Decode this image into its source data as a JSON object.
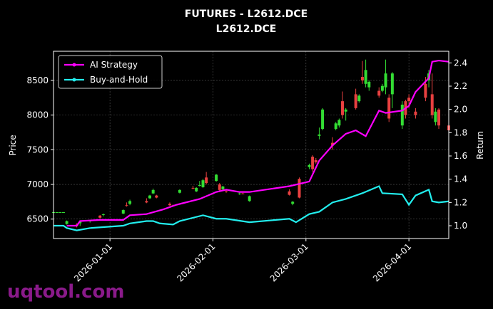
{
  "chart_data": {
    "type": "candlestick",
    "title": "FUTURES - L2612.DCE",
    "subtitle": "L2612.DCE",
    "y_label": "Price",
    "y2_label": "Return",
    "watermark": "uqtool.com",
    "grid": true,
    "legend": "upper left",
    "up_color": "#33dd33",
    "down_color": "#e84040",
    "xlim": [
      "2025-12-15",
      "2026-04-13"
    ],
    "xticks": [
      "2026-01-01",
      "2026-02-01",
      "2026-03-01",
      "2026-04-01"
    ],
    "ylim": [
      6220,
      8920
    ],
    "yticks": [
      6500,
      7000,
      7500,
      8000,
      8500
    ],
    "y2lim": [
      0.89,
      2.5
    ],
    "y2ticks": [
      {
        "value": 1.0,
        "label": "1.0"
      },
      1.2,
      1.4,
      1.6,
      1.8,
      {
        "value": 2.0,
        "label": "2.0"
      },
      2.2,
      2.4
    ],
    "x": [
      "2025-12-15",
      "2025-12-16",
      "2025-12-17",
      "2025-12-18",
      "2025-12-19",
      "2025-12-22",
      "2025-12-23",
      "2025-12-26",
      "2025-12-29",
      "2025-12-30",
      "2026-01-05",
      "2026-01-06",
      "2026-01-07",
      "2026-01-12",
      "2026-01-13",
      "2026-01-14",
      "2026-01-15",
      "2026-01-19",
      "2026-01-20",
      "2026-01-22",
      "2026-01-26",
      "2026-01-27",
      "2026-01-28",
      "2026-01-29",
      "2026-01-30",
      "2026-02-02",
      "2026-02-03",
      "2026-02-04",
      "2026-02-05",
      "2026-02-09",
      "2026-02-10",
      "2026-02-12",
      "2026-02-24",
      "2026-02-25",
      "2026-02-27",
      "2026-03-02",
      "2026-03-03",
      "2026-03-04",
      "2026-03-05",
      "2026-03-06",
      "2026-03-09",
      "2026-03-10",
      "2026-03-11",
      "2026-03-12",
      "2026-03-13",
      "2026-03-16",
      "2026-03-17",
      "2026-03-18",
      "2026-03-19",
      "2026-03-20",
      "2026-03-23",
      "2026-03-24",
      "2026-03-25",
      "2026-03-26",
      "2026-03-27",
      "2026-03-30",
      "2026-03-31",
      "2026-04-01",
      "2026-04-03",
      "2026-04-06",
      "2026-04-07",
      "2026-04-08",
      "2026-04-09",
      "2026-04-10",
      "2026-04-13"
    ],
    "open": [
      6600,
      6600,
      6600,
      6600,
      6430,
      6420,
      6440,
      6470,
      6550,
      6560,
      6580,
      6700,
      6720,
      6760,
      6800,
      6870,
      6840,
      6720,
      6700,
      6880,
      6950,
      6900,
      6980,
      6960,
      7100,
      7050,
      7000,
      6930,
      6900,
      6860,
      6870,
      6760,
      6900,
      6720,
      7080,
      7250,
      7400,
      7350,
      7700,
      7800,
      7600,
      7800,
      7850,
      8200,
      8050,
      8300,
      8200,
      8550,
      8450,
      8400,
      8350,
      8350,
      8400,
      8250,
      8300,
      7850,
      8200,
      8250,
      8050,
      8450,
      8500,
      8300,
      7900,
      8080,
      7850
    ],
    "high": [
      6600,
      6600,
      6600,
      6600,
      6480,
      6440,
      6470,
      6490,
      6560,
      6580,
      6640,
      6740,
      6780,
      6800,
      6850,
      6940,
      6850,
      6740,
      6710,
      6930,
      6980,
      6960,
      7050,
      7080,
      7180,
      7150,
      7020,
      6980,
      6920,
      6880,
      6880,
      6840,
      6930,
      6760,
      7100,
      7300,
      7420,
      7380,
      7820,
      8100,
      7680,
      7900,
      7950,
      8340,
      8100,
      8380,
      8300,
      8780,
      8800,
      8500,
      8400,
      8450,
      8800,
      8300,
      8620,
      8200,
      8220,
      8300,
      8100,
      8550,
      8650,
      8600,
      8100,
      8100,
      7900
    ],
    "low": [
      6600,
      6600,
      6600,
      6600,
      6420,
      6380,
      6400,
      6450,
      6510,
      6540,
      6570,
      6680,
      6700,
      6730,
      6790,
      6860,
      6800,
      6690,
      6680,
      6870,
      6930,
      6890,
      6970,
      6950,
      7000,
      7040,
      6900,
      6920,
      6880,
      6850,
      6860,
      6750,
      6840,
      6700,
      6800,
      7220,
      7180,
      7300,
      7650,
      7780,
      7500,
      7780,
      7820,
      7950,
      7920,
      8080,
      8180,
      8450,
      8400,
      8350,
      8250,
      8330,
      8300,
      7900,
      8100,
      7800,
      7950,
      8100,
      7950,
      8200,
      8400,
      7950,
      7850,
      7800,
      7750
    ],
    "close": [
      6600,
      6600,
      6600,
      6600,
      6470,
      6400,
      6460,
      6480,
      6520,
      6570,
      6630,
      6690,
      6760,
      6740,
      6840,
      6920,
      6810,
      6700,
      6690,
      6920,
      6940,
      6950,
      6990,
      7060,
      7020,
      7140,
      6920,
      6970,
      6890,
      6870,
      6860,
      6830,
      6850,
      6750,
      6810,
      7280,
      7220,
      7320,
      7720,
      8080,
      7560,
      7880,
      7930,
      8000,
      8080,
      8100,
      8280,
      8500,
      8650,
      8480,
      8280,
      8420,
      8600,
      7950,
      8600,
      8150,
      8000,
      8200,
      8000,
      8250,
      8600,
      8000,
      8050,
      7850,
      7780
    ],
    "series": [
      {
        "name": "AI Strategy",
        "color": "#ff00ff",
        "axis": "y2",
        "x": [
          "2025-12-19",
          "2025-12-22",
          "2025-12-23",
          "2025-12-29",
          "2026-01-05",
          "2026-01-07",
          "2026-01-12",
          "2026-01-17",
          "2026-01-21",
          "2026-01-28",
          "2026-02-02",
          "2026-02-05",
          "2026-02-09",
          "2026-02-12",
          "2026-02-24",
          "2026-03-02",
          "2026-03-05",
          "2026-03-09",
          "2026-03-13",
          "2026-03-16",
          "2026-03-19",
          "2026-03-23",
          "2026-03-25",
          "2026-03-30",
          "2026-04-01",
          "2026-04-03",
          "2026-04-07",
          "2026-04-08",
          "2026-04-10",
          "2026-04-13"
        ],
        "values": [
          1.0,
          1.0,
          1.04,
          1.05,
          1.05,
          1.09,
          1.1,
          1.14,
          1.18,
          1.23,
          1.29,
          1.31,
          1.29,
          1.29,
          1.34,
          1.38,
          1.56,
          1.69,
          1.79,
          1.82,
          1.77,
          1.99,
          1.97,
          1.99,
          2.03,
          2.15,
          2.27,
          2.41,
          2.42,
          2.41
        ]
      },
      {
        "name": "Buy-and-Hold",
        "color": "#22eeee",
        "axis": "y2",
        "x": [
          "2025-12-15",
          "2025-12-18",
          "2025-12-19",
          "2025-12-22",
          "2025-12-26",
          "2026-01-05",
          "2026-01-07",
          "2026-01-12",
          "2026-01-14",
          "2026-01-16",
          "2026-01-20",
          "2026-01-22",
          "2026-01-29",
          "2026-02-02",
          "2026-02-05",
          "2026-02-12",
          "2026-02-24",
          "2026-02-26",
          "2026-03-02",
          "2026-03-05",
          "2026-03-09",
          "2026-03-13",
          "2026-03-18",
          "2026-03-23",
          "2026-03-24",
          "2026-03-30",
          "2026-04-01",
          "2026-04-03",
          "2026-04-07",
          "2026-04-08",
          "2026-04-10",
          "2026-04-13"
        ],
        "values": [
          1.0,
          1.0,
          0.98,
          0.96,
          0.98,
          1.0,
          1.02,
          1.04,
          1.04,
          1.02,
          1.01,
          1.04,
          1.09,
          1.06,
          1.06,
          1.03,
          1.06,
          1.03,
          1.1,
          1.12,
          1.2,
          1.23,
          1.28,
          1.34,
          1.28,
          1.27,
          1.18,
          1.26,
          1.31,
          1.21,
          1.2,
          1.21
        ]
      }
    ]
  }
}
